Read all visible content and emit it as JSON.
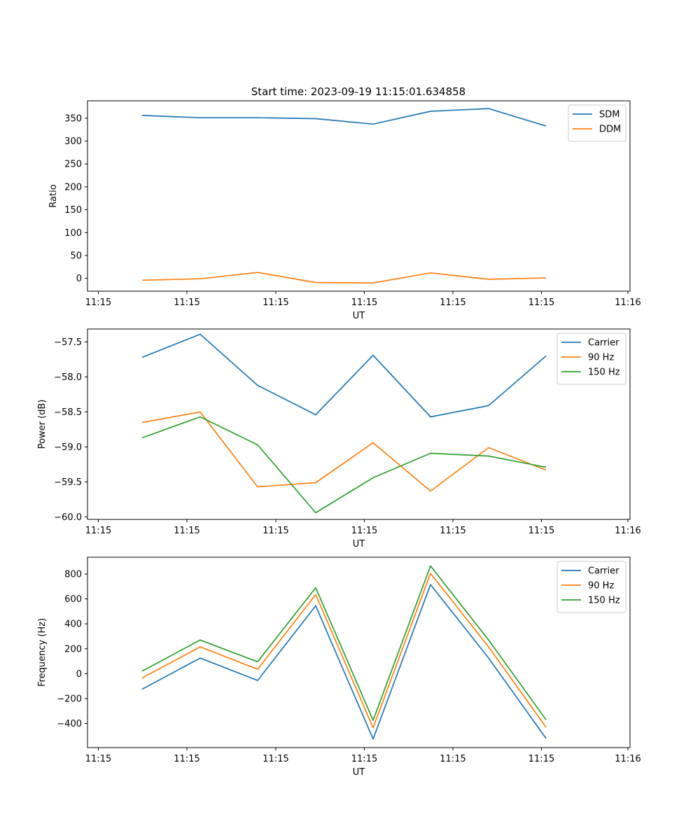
{
  "title": "Start time: 2023-09-19 11:15:01.634858",
  "chart_data": [
    {
      "type": "line",
      "title": "Start time: 2023-09-19 11:15:01.634858",
      "xlabel": "UT",
      "ylabel": "Ratio",
      "xticks": [
        "11:15",
        "11:15",
        "11:15",
        "11:15",
        "11:15",
        "11:15",
        "11:15"
      ],
      "xticks_last": "11:16",
      "yticks": [
        "0",
        "50",
        "100",
        "150",
        "200",
        "250",
        "300",
        "350"
      ],
      "ytick_values": [
        0,
        50,
        100,
        150,
        200,
        250,
        300,
        350
      ],
      "ylim": [
        -28,
        388
      ],
      "legend_position": "top-right",
      "series": [
        {
          "name": "SDM",
          "color": "#1f77b4",
          "values": [
            356,
            351,
            351,
            349,
            337,
            365,
            371,
            333
          ]
        },
        {
          "name": "DDM",
          "color": "#ff7f0e",
          "values": [
            -4,
            -1,
            13,
            -9,
            -10,
            12,
            -2,
            1
          ]
        }
      ]
    },
    {
      "type": "line",
      "xlabel": "UT",
      "ylabel": "Power (dB)",
      "xticks": [
        "11:15",
        "11:15",
        "11:15",
        "11:15",
        "11:15",
        "11:15",
        "11:15"
      ],
      "xticks_last": "11:16",
      "yticks": [
        "−60.0",
        "−59.5",
        "−59.0",
        "−58.5",
        "−58.0",
        "−57.5"
      ],
      "ytick_values": [
        -60.0,
        -59.5,
        -59.0,
        -58.5,
        -58.0,
        -57.5
      ],
      "ylim": [
        -60.035,
        -57.315
      ],
      "legend_position": "top-right",
      "series": [
        {
          "name": "Carrier",
          "color": "#1f77b4",
          "values": [
            -57.72,
            -57.39,
            -58.12,
            -58.54,
            -57.69,
            -58.57,
            -58.41,
            -57.7
          ]
        },
        {
          "name": "90 Hz",
          "color": "#ff7f0e",
          "values": [
            -58.65,
            -58.5,
            -59.57,
            -59.51,
            -58.94,
            -59.63,
            -59.01,
            -59.33
          ]
        },
        {
          "name": "150 Hz",
          "color": "#2ca02c",
          "values": [
            -58.87,
            -58.57,
            -58.97,
            -59.94,
            -59.44,
            -59.09,
            -59.13,
            -59.29
          ]
        }
      ]
    },
    {
      "type": "line",
      "xlabel": "UT",
      "ylabel": "Frequency (Hz)",
      "xticks": [
        "11:15",
        "11:15",
        "11:15",
        "11:15",
        "11:15",
        "11:15",
        "11:15"
      ],
      "xticks_last": "11:16",
      "yticks": [
        "−400",
        "−200",
        "0",
        "200",
        "400",
        "600",
        "800"
      ],
      "ytick_values": [
        -400,
        -200,
        0,
        200,
        400,
        600,
        800
      ],
      "ylim": [
        -594,
        935
      ],
      "legend_position": "top-right",
      "series": [
        {
          "name": "Carrier",
          "color": "#1f77b4",
          "values": [
            -125,
            125,
            -55,
            545,
            -525,
            715,
            125,
            -520
          ]
        },
        {
          "name": "90 Hz",
          "color": "#ff7f0e",
          "values": [
            -35,
            215,
            35,
            635,
            -435,
            805,
            215,
            -430
          ]
        },
        {
          "name": "150 Hz",
          "color": "#2ca02c",
          "values": [
            20,
            270,
            95,
            690,
            -375,
            865,
            270,
            -370
          ]
        }
      ]
    }
  ]
}
